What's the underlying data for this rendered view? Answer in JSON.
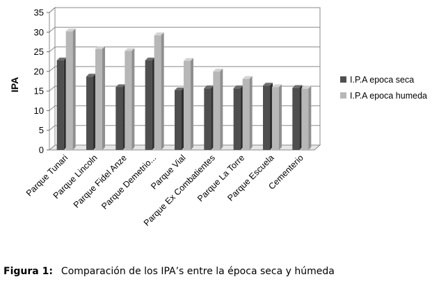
{
  "chart_data": {
    "type": "bar",
    "ylabel": "IPA",
    "xlabel": "",
    "ylim": [
      0,
      35
    ],
    "yticks": [
      0,
      5,
      10,
      15,
      20,
      25,
      30,
      35
    ],
    "grid": true,
    "legend_position": "right",
    "categories": [
      "Parque Tunari",
      "Parque Lincoln",
      "Parque Fidel Anze",
      "Parque Demetrio...",
      "Parque Vial",
      "Parque Ex Combatientes",
      "Parque La Torre",
      "Parque Escuela",
      "Cementerio"
    ],
    "series": [
      {
        "name": "I.P.A epoca seca",
        "color": "#4d4d4d",
        "values": [
          22.8,
          18.7,
          16.0,
          22.8,
          15.2,
          15.7,
          15.7,
          16.4,
          15.8
        ]
      },
      {
        "name": "I.P.A epoca humeda",
        "color": "#b3b3b3",
        "values": [
          30.2,
          25.7,
          25.2,
          29.2,
          22.7,
          20.0,
          18.1,
          16.0,
          15.6
        ]
      }
    ]
  },
  "caption": {
    "label": "Figura 1:",
    "text": "Comparación de los IPA’s entre la época seca y húmeda"
  }
}
